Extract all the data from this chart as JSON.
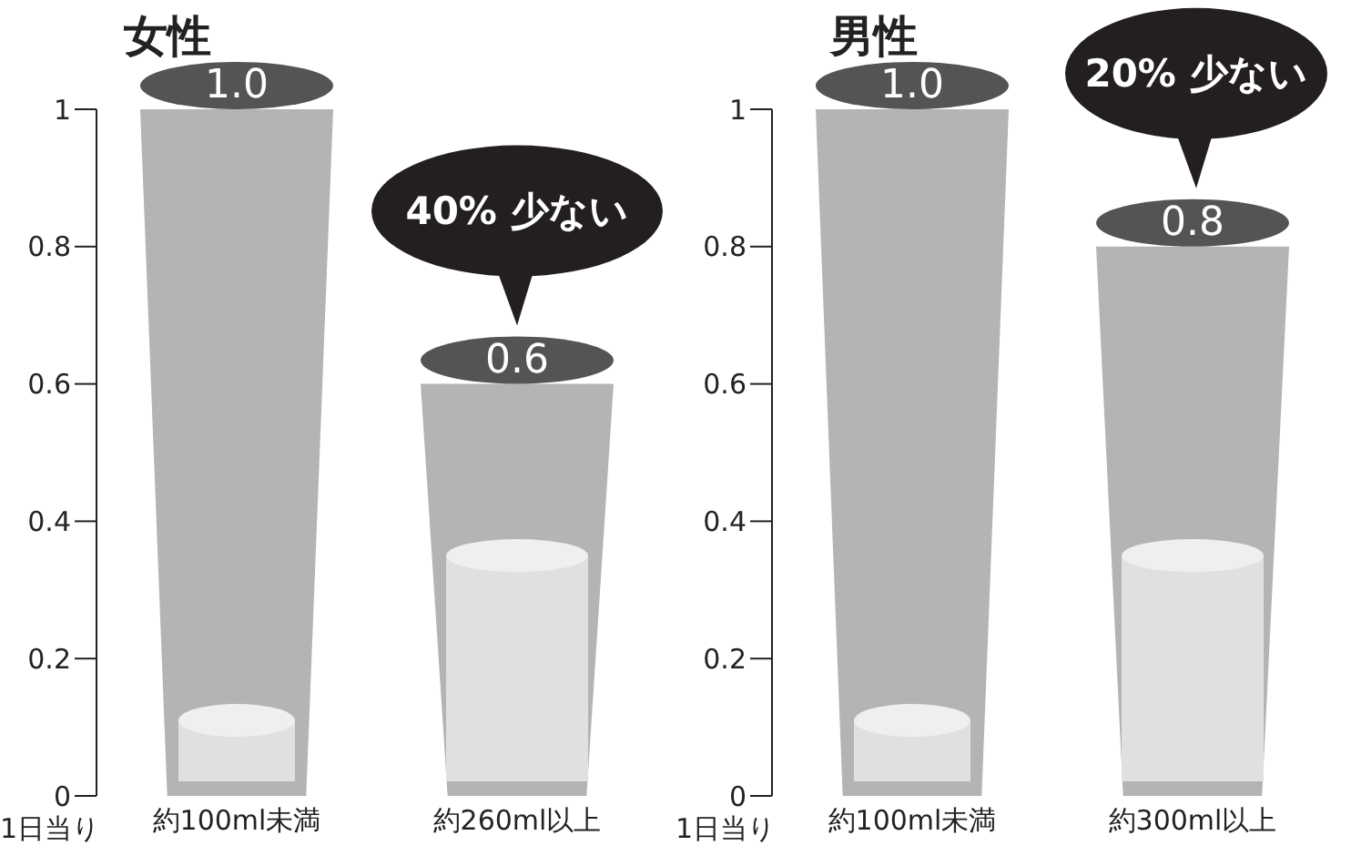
{
  "chart_data": [
    {
      "type": "bar",
      "title": "女性",
      "xlabel": "1日当り",
      "categories": [
        "約100ml未満",
        "約260ml以上"
      ],
      "values": [
        1.0,
        0.6
      ],
      "value_labels": [
        "1.0",
        "0.6"
      ],
      "color": "#b3b4b4",
      "ylim": [
        0,
        1
      ],
      "yticks": [
        0,
        0.2,
        0.4,
        0.6,
        0.8,
        1
      ],
      "grid": false,
      "legend": false,
      "annotations": [
        "40% 少ない"
      ]
    },
    {
      "type": "bar",
      "title": "男性",
      "xlabel": "1日当り",
      "categories": [
        "約100ml未満",
        "約300ml以上"
      ],
      "values": [
        1.0,
        0.8
      ],
      "value_labels": [
        "1.0",
        "0.8"
      ],
      "color": "#b3b4b4",
      "ylim": [
        0,
        1
      ],
      "yticks": [
        0,
        0.2,
        0.4,
        0.6,
        0.8,
        1
      ],
      "grid": false,
      "legend": false,
      "annotations": [
        "20% 少ない"
      ]
    }
  ]
}
